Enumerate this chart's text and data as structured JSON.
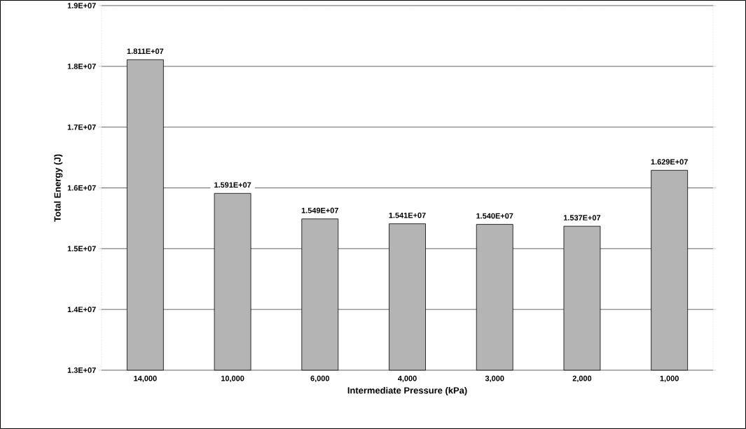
{
  "chart_data": {
    "type": "bar",
    "xlabel": "Intermediate Pressure (kPa)",
    "ylabel": "Total Energy (J)",
    "categories": [
      "14,000",
      "10,000",
      "6,000",
      "4,000",
      "3,000",
      "2,000",
      "1,000"
    ],
    "values": [
      18110000,
      15910000,
      15490000,
      15410000,
      15400000,
      15370000,
      16290000
    ],
    "value_labels": [
      "1.811E+07",
      "1.591E+07",
      "1.549E+07",
      "1.541E+07",
      "1.540E+07",
      "1.537E+07",
      "1.629E+07"
    ],
    "color": "#b4b4b4",
    "ylim": [
      13000000,
      19000000
    ],
    "yticks": [
      {
        "value": 13000000,
        "label": "1.3E+07"
      },
      {
        "value": 14000000,
        "label": "1.4E+07"
      },
      {
        "value": 15000000,
        "label": "1.5E+07"
      },
      {
        "value": 16000000,
        "label": "1.6E+07"
      },
      {
        "value": 17000000,
        "label": "1.7E+07"
      },
      {
        "value": 18000000,
        "label": "1.8E+07"
      },
      {
        "value": 19000000,
        "label": "1.9E+07"
      }
    ],
    "grid": "y"
  }
}
